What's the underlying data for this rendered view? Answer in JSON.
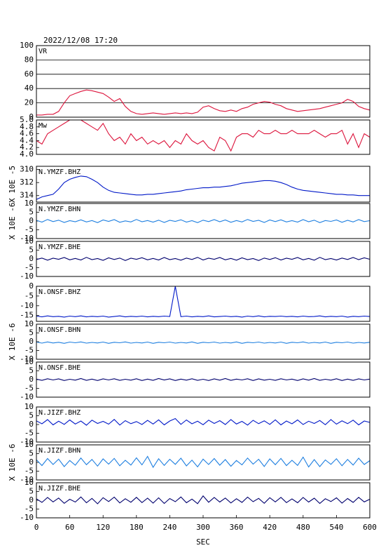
{
  "chart_data": {
    "type": "line",
    "title": "2022/12/08  17:20",
    "xlabel": "SEC",
    "xlim": [
      0,
      600
    ],
    "xticks": [
      0,
      60,
      120,
      180,
      240,
      300,
      360,
      420,
      480,
      540,
      600
    ],
    "x": [
      0,
      10,
      20,
      30,
      40,
      50,
      60,
      70,
      80,
      90,
      100,
      110,
      120,
      130,
      140,
      150,
      160,
      170,
      180,
      190,
      200,
      210,
      220,
      230,
      240,
      250,
      260,
      270,
      280,
      290,
      300,
      310,
      320,
      330,
      340,
      350,
      360,
      370,
      380,
      390,
      400,
      410,
      420,
      430,
      440,
      450,
      460,
      470,
      480,
      490,
      500,
      510,
      520,
      530,
      540,
      550,
      560,
      570,
      580,
      590,
      600
    ],
    "panels": [
      {
        "label": "VR",
        "color": "#dc143c",
        "grid": true,
        "ylim": [
          0,
          100
        ],
        "yticks": [
          0,
          20,
          40,
          60,
          80,
          100
        ],
        "values": [
          3,
          3,
          4,
          4,
          8,
          20,
          30,
          33,
          36,
          38,
          37,
          35,
          33,
          28,
          22,
          26,
          15,
          8,
          5,
          4,
          5,
          6,
          5,
          4,
          5,
          6,
          5,
          6,
          5,
          7,
          14,
          16,
          12,
          9,
          8,
          10,
          8,
          12,
          14,
          18,
          20,
          22,
          21,
          18,
          16,
          12,
          10,
          8,
          9,
          10,
          11,
          12,
          14,
          16,
          18,
          20,
          25,
          22,
          15,
          12,
          10
        ]
      },
      {
        "label": "Mw",
        "color": "#dc143c",
        "grid": false,
        "ylim": [
          4,
          5
        ],
        "yticks": [
          {
            "value": 4,
            "label": "4.0"
          },
          {
            "value": 4.2,
            "label": "4.2"
          },
          {
            "value": 4.4,
            "label": "4.4"
          },
          {
            "value": 4.6,
            "label": "4.6"
          },
          {
            "value": 4.8,
            "label": "4.8"
          },
          {
            "value": 5,
            "label": "5.0"
          }
        ],
        "values": [
          4.4,
          4.3,
          4.6,
          4.7,
          4.8,
          4.9,
          5.0,
          5.0,
          5.0,
          4.9,
          4.8,
          4.7,
          4.9,
          4.6,
          4.4,
          4.5,
          4.3,
          4.6,
          4.4,
          4.5,
          4.3,
          4.4,
          4.3,
          4.4,
          4.2,
          4.4,
          4.3,
          4.6,
          4.4,
          4.3,
          4.4,
          4.2,
          4.1,
          4.5,
          4.4,
          4.1,
          4.5,
          4.6,
          4.6,
          4.5,
          4.7,
          4.6,
          4.6,
          4.7,
          4.6,
          4.6,
          4.7,
          4.6,
          4.6,
          4.6,
          4.7,
          4.6,
          4.5,
          4.6,
          4.6,
          4.7,
          4.3,
          4.6,
          4.2,
          4.6,
          4.5
        ]
      },
      {
        "label": "N.YMZF.BHZ",
        "ylabel": "X 10E -5",
        "color": "#0018c8",
        "grid": false,
        "ylim": [
          315,
          309.5
        ],
        "yticks": [
          310,
          312,
          314
        ],
        "values": [
          314.6,
          314.2,
          314.0,
          313.8,
          313.0,
          312.0,
          311.5,
          311.2,
          311.0,
          311.1,
          311.5,
          312.0,
          312.7,
          313.2,
          313.5,
          313.6,
          313.7,
          313.8,
          313.9,
          313.9,
          313.8,
          313.8,
          313.7,
          313.6,
          313.5,
          313.4,
          313.3,
          313.1,
          313.0,
          312.9,
          312.8,
          312.8,
          312.7,
          312.7,
          312.6,
          312.5,
          312.3,
          312.1,
          312.0,
          311.9,
          311.8,
          311.7,
          311.7,
          311.8,
          312.0,
          312.3,
          312.7,
          313.0,
          313.2,
          313.3,
          313.4,
          313.5,
          313.6,
          313.7,
          313.8,
          313.8,
          313.9,
          313.9,
          314.0,
          314.0,
          314.0
        ]
      },
      {
        "label": "N.YMZF.BHN",
        "ylabel": "X 10E -6",
        "color": "#1e7fe0",
        "grid": false,
        "ylim": [
          -10,
          10
        ],
        "yticks": [
          10,
          5,
          0,
          -5,
          -10
        ],
        "values": [
          0.4,
          -0.6,
          0.9,
          -0.3,
          0.5,
          -0.8,
          0.2,
          -0.4,
          0.7,
          -0.5,
          0.3,
          -0.9,
          0.6,
          -0.2,
          0.8,
          -0.7,
          0.1,
          -0.5,
          0.9,
          -0.4,
          0.3,
          -0.6,
          0.5,
          -0.8,
          0.4,
          -0.2,
          0.7,
          -0.6,
          0.2,
          -0.9,
          0.5,
          -0.3,
          0.8,
          -0.4,
          0.6,
          -0.7,
          0.3,
          -0.5,
          0.9,
          -0.2,
          0.4,
          -0.8,
          0.6,
          -0.3,
          0.7,
          -0.5,
          0.2,
          -0.6,
          0.8,
          -0.4,
          0.5,
          -0.9,
          0.3,
          -0.2,
          0.6,
          -0.7,
          0.4,
          -0.5,
          0.8,
          -0.3,
          0.2
        ]
      },
      {
        "label": "N.YMZF.BHE",
        "color": "#00006e",
        "grid": false,
        "ylim": [
          -10,
          10
        ],
        "yticks": [
          10,
          5,
          0,
          -5,
          -10
        ],
        "values": [
          -0.3,
          0.5,
          -0.7,
          0.4,
          -0.2,
          0.8,
          -0.5,
          0.3,
          -0.6,
          0.9,
          -0.4,
          0.2,
          -0.8,
          0.6,
          -0.3,
          0.5,
          -0.9,
          0.4,
          -0.2,
          0.7,
          -0.5,
          0.3,
          -0.6,
          0.8,
          -0.4,
          0.2,
          -0.7,
          0.5,
          -0.3,
          0.9,
          -0.6,
          0.4,
          -0.2,
          0.8,
          -0.5,
          0.3,
          -0.7,
          0.6,
          -0.4,
          0.2,
          -0.9,
          0.5,
          -0.3,
          0.7,
          -0.6,
          0.4,
          -0.2,
          0.8,
          -0.5,
          0.3,
          -0.7,
          0.9,
          -0.4,
          0.2,
          -0.6,
          0.5,
          -0.3,
          0.8,
          -0.4,
          0.6,
          -0.2
        ]
      },
      {
        "label": "N.ONSF.BHZ",
        "color": "#0018c8",
        "grid": false,
        "ylim": [
          -18,
          0
        ],
        "yticks": [
          0,
          -5,
          -10,
          -15
        ],
        "values": [
          -15.3,
          -15.7,
          -15.2,
          -15.6,
          -15.4,
          -15.8,
          -15.3,
          -15.6,
          -15.2,
          -15.7,
          -15.4,
          -15.6,
          -15.3,
          -15.8,
          -15.5,
          -15.2,
          -15.7,
          -15.4,
          -15.6,
          -15.3,
          -15.7,
          -15.4,
          -15.6,
          -15.3,
          -15.5,
          0,
          -15.6,
          -15.3,
          -15.7,
          -15.4,
          -15.6,
          -15.2,
          -15.7,
          -15.5,
          -15.3,
          -15.6,
          -15.4,
          -15.8,
          -15.3,
          -15.6,
          -15.2,
          -15.7,
          -15.4,
          -15.5,
          -15.3,
          -15.6,
          -15.4,
          -15.7,
          -15.3,
          -15.6,
          -15.5,
          -15.2,
          -15.7,
          -15.4,
          -15.6,
          -15.3,
          -15.8,
          -15.4,
          -15.6,
          -15.3,
          -15.5
        ]
      },
      {
        "label": "N.ONSF.BHN",
        "ylabel": "X 10E -6",
        "color": "#1e7fe0",
        "grid": false,
        "ylim": [
          -10,
          10
        ],
        "yticks": [
          10,
          5,
          0,
          -5,
          -10
        ],
        "values": [
          -0.2,
          -0.8,
          -0.1,
          -0.7,
          -0.3,
          -0.9,
          -0.2,
          -0.6,
          -0.1,
          -0.8,
          -0.4,
          -0.7,
          -0.2,
          -0.9,
          -0.3,
          -0.6,
          -0.1,
          -0.8,
          -0.4,
          -0.7,
          -0.2,
          -0.9,
          -0.3,
          -0.6,
          -0.2,
          -0.8,
          -0.4,
          -0.7,
          -0.1,
          -0.9,
          -0.3,
          -0.6,
          -0.2,
          -0.8,
          -0.4,
          -0.7,
          -0.1,
          -0.9,
          -0.3,
          -0.6,
          -0.2,
          -0.8,
          -0.4,
          -0.7,
          -0.2,
          -0.9,
          -0.3,
          -0.6,
          -0.1,
          -0.8,
          -0.4,
          -0.7,
          -0.2,
          -0.9,
          -0.3,
          -0.6,
          -0.2,
          -0.8,
          -0.4,
          -0.7,
          -0.3
        ]
      },
      {
        "label": "N.ONSF.BHE",
        "color": "#00006e",
        "grid": false,
        "ylim": [
          -10,
          10
        ],
        "yticks": [
          10,
          5,
          0,
          -5,
          -10
        ],
        "values": [
          0.3,
          -0.4,
          0.5,
          -0.2,
          0.4,
          -0.5,
          0.2,
          -0.3,
          0.6,
          -0.4,
          0.3,
          -0.5,
          0.4,
          -0.2,
          0.5,
          -0.4,
          0.2,
          -0.3,
          0.5,
          -0.5,
          0.3,
          -0.4,
          0.6,
          -0.2,
          0.4,
          -0.5,
          0.3,
          -0.3,
          0.5,
          -0.4,
          0.2,
          -0.5,
          0.4,
          -0.3,
          0.6,
          -0.4,
          0.3,
          -0.2,
          0.5,
          -0.5,
          0.4,
          -0.3,
          0.2,
          -0.4,
          0.5,
          -0.2,
          0.3,
          -0.5,
          0.4,
          -0.3,
          0.6,
          -0.4,
          0.2,
          -0.3,
          0.5,
          -0.5,
          0.3,
          -0.4,
          0.4,
          -0.2,
          0.3
        ]
      },
      {
        "label": "N.JIZF.BHZ",
        "color": "#0018c8",
        "grid": false,
        "ylim": [
          -10,
          10
        ],
        "yticks": [
          10,
          5,
          0,
          -5,
          -10
        ],
        "values": [
          2.1,
          0.4,
          2.8,
          -0.2,
          1.9,
          0.1,
          2.6,
          0.3,
          2.0,
          -0.4,
          2.5,
          0.6,
          1.8,
          0.2,
          2.9,
          -0.3,
          2.2,
          0.5,
          1.7,
          0.0,
          2.4,
          0.3,
          2.7,
          -0.2,
          2.0,
          3.4,
          0.1,
          2.6,
          0.4,
          1.9,
          -0.1,
          2.5,
          0.6,
          2.2,
          0.0,
          2.8,
          0.3,
          1.8,
          -0.3,
          2.4,
          0.5,
          2.1,
          0.1,
          2.7,
          -0.2,
          2.0,
          0.4,
          2.6,
          0.0,
          1.9,
          0.6,
          2.3,
          -0.1,
          2.8,
          0.2,
          2.1,
          0.5,
          2.5,
          -0.2,
          2.0,
          1.2
        ]
      },
      {
        "label": "N.JIZF.BHN",
        "ylabel": "X 10E -6",
        "color": "#1e7fe0",
        "grid": false,
        "ylim": [
          -10,
          10
        ],
        "yticks": [
          10,
          5,
          0,
          -5,
          -10
        ],
        "values": [
          1.5,
          -1.8,
          2.2,
          -1.2,
          1.9,
          -2.4,
          1.1,
          -1.6,
          2.5,
          -1.3,
          1.7,
          -2.1,
          2.0,
          -1.0,
          2.3,
          -1.9,
          1.2,
          -1.5,
          2.6,
          -1.4,
          3.4,
          -2.8,
          2.1,
          -1.7,
          1.8,
          -1.1,
          2.4,
          -2.0,
          1.3,
          -2.5,
          1.9,
          -1.2,
          2.2,
          -1.6,
          1.6,
          -2.2,
          1.1,
          -1.4,
          2.5,
          -1.0,
          1.8,
          -2.3,
          2.0,
          -1.3,
          2.3,
          -1.8,
          1.2,
          -1.7,
          3.0,
          -2.6,
          1.6,
          -2.4,
          1.4,
          -1.1,
          2.1,
          -1.9,
          1.7,
          -1.5,
          2.4,
          -1.2,
          1.0
        ]
      },
      {
        "label": "N.JIZF.BHE",
        "color": "#00006e",
        "grid": false,
        "ylim": [
          -10,
          10
        ],
        "yticks": [
          10,
          5,
          0,
          -5,
          -10
        ],
        "values": [
          0.8,
          -1.2,
          1.6,
          -0.9,
          1.3,
          -1.7,
          0.6,
          -1.0,
          1.9,
          -1.4,
          1.1,
          -2.0,
          1.5,
          -0.7,
          1.8,
          -1.5,
          0.9,
          -1.1,
          1.7,
          -1.3,
          1.2,
          -1.6,
          1.4,
          -1.8,
          1.0,
          -0.8,
          1.9,
          -1.4,
          0.7,
          -1.9,
          2.5,
          -1.1,
          1.6,
          -1.0,
          1.3,
          -1.5,
          0.9,
          -1.2,
          1.8,
          -0.8,
          1.1,
          -1.7,
          1.5,
          -0.9,
          1.7,
          -1.3,
          0.8,
          -1.4,
          1.6,
          -1.0,
          1.2,
          -1.8,
          0.9,
          -0.7,
          1.4,
          -1.6,
          1.0,
          -1.2,
          1.7,
          -0.9,
          0.6
        ]
      }
    ]
  }
}
